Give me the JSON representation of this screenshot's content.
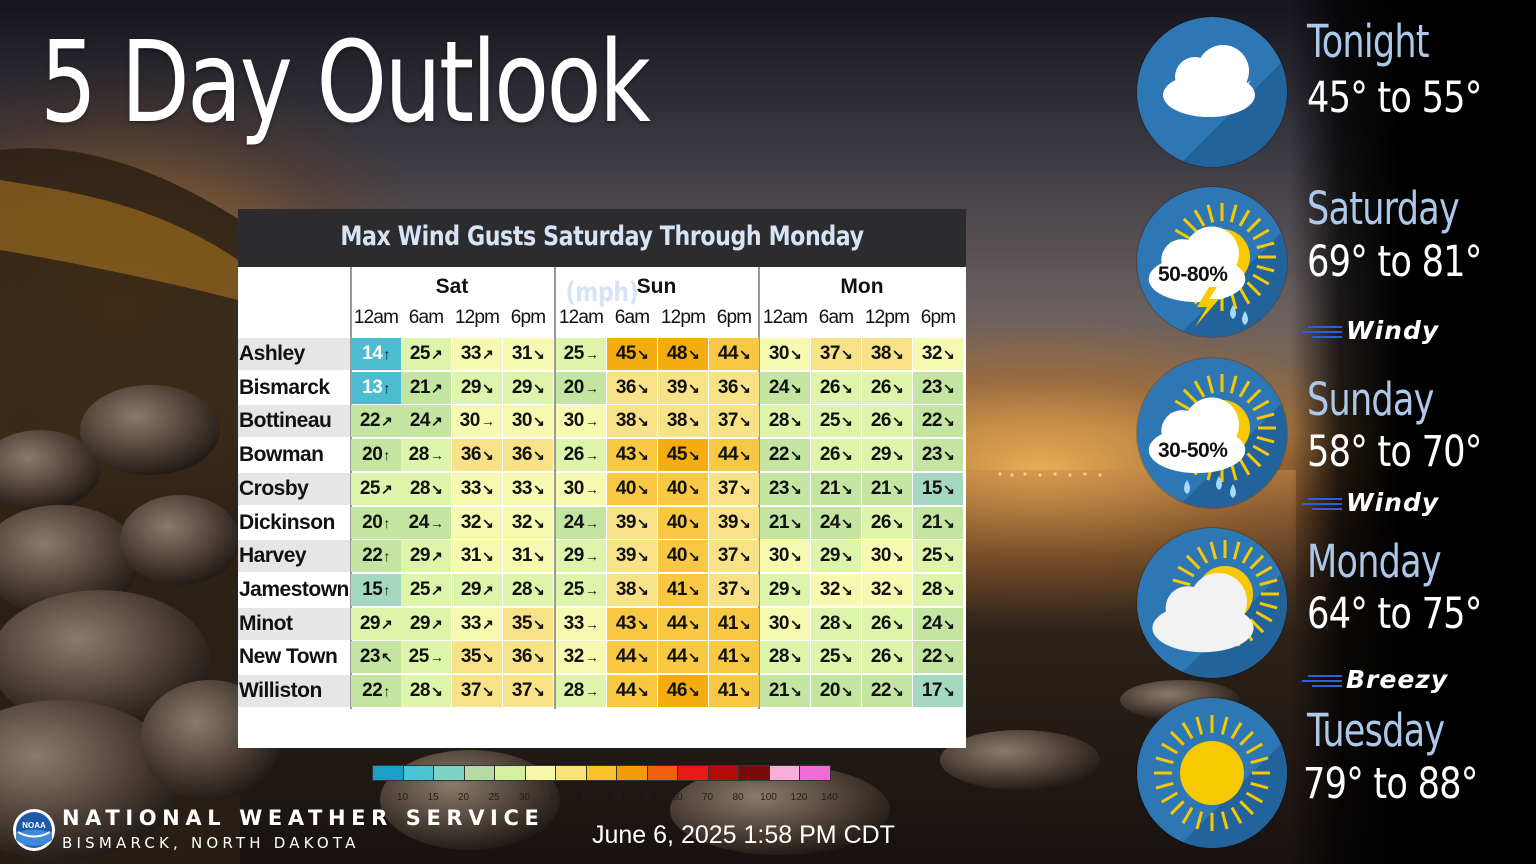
{
  "title": "5 Day Outlook",
  "wind_table": {
    "title": "Max Wind Gusts Saturday Through Monday (mph)",
    "days": [
      "Sat",
      "Sun",
      "Mon"
    ],
    "times": [
      "12am",
      "6am",
      "12pm",
      "6pm",
      "12am",
      "6am",
      "12pm",
      "6pm",
      "12am",
      "6am",
      "12pm",
      "6pm"
    ],
    "rows": [
      {
        "city": "Ashley",
        "values": [
          14,
          25,
          33,
          31,
          25,
          45,
          48,
          44,
          30,
          37,
          38,
          32
        ]
      },
      {
        "city": "Bismarck",
        "values": [
          13,
          21,
          29,
          29,
          20,
          36,
          39,
          36,
          24,
          26,
          26,
          23
        ]
      },
      {
        "city": "Bottineau",
        "values": [
          22,
          24,
          30,
          30,
          30,
          38,
          38,
          37,
          28,
          25,
          26,
          22
        ]
      },
      {
        "city": "Bowman",
        "values": [
          20,
          28,
          36,
          36,
          26,
          43,
          45,
          44,
          22,
          26,
          29,
          23
        ]
      },
      {
        "city": "Crosby",
        "values": [
          25,
          28,
          33,
          33,
          30,
          40,
          40,
          37,
          23,
          21,
          21,
          15
        ]
      },
      {
        "city": "Dickinson",
        "values": [
          20,
          24,
          32,
          32,
          24,
          39,
          40,
          39,
          21,
          24,
          26,
          21
        ]
      },
      {
        "city": "Harvey",
        "values": [
          22,
          29,
          31,
          31,
          29,
          39,
          40,
          37,
          30,
          29,
          30,
          25
        ]
      },
      {
        "city": "Jamestown",
        "values": [
          15,
          25,
          29,
          28,
          25,
          38,
          41,
          37,
          29,
          32,
          32,
          28
        ]
      },
      {
        "city": "Minot",
        "values": [
          29,
          29,
          33,
          35,
          33,
          43,
          44,
          41,
          30,
          28,
          26,
          24
        ]
      },
      {
        "city": "New Town",
        "values": [
          23,
          25,
          35,
          36,
          32,
          44,
          44,
          41,
          28,
          25,
          26,
          22
        ]
      },
      {
        "city": "Williston",
        "values": [
          22,
          28,
          37,
          37,
          28,
          44,
          46,
          41,
          21,
          20,
          22,
          17
        ]
      }
    ],
    "arrows": [
      [
        "↑",
        "↗",
        "↗",
        "↘",
        "→",
        "↘",
        "↘",
        "↘",
        "↘",
        "↘",
        "↘",
        "↘"
      ],
      [
        "↑",
        "↗",
        "↘",
        "↘",
        "→",
        "↘",
        "↘",
        "↘",
        "↘",
        "↘",
        "↘",
        "↘"
      ],
      [
        "↗",
        "↗",
        "→",
        "↘",
        "→",
        "↘",
        "↘",
        "↘",
        "↘",
        "↘",
        "↘",
        "↘"
      ],
      [
        "↑",
        "→",
        "↘",
        "↘",
        "→",
        "↘",
        "↘",
        "↘",
        "↘",
        "↘",
        "↘",
        "↘"
      ],
      [
        "↗",
        "↘",
        "↘",
        "↘",
        "→",
        "↘",
        "↘",
        "↘",
        "↘",
        "↘",
        "↘",
        "↘"
      ],
      [
        "↑",
        "→",
        "↘",
        "↘",
        "→",
        "↘",
        "↘",
        "↘",
        "↘",
        "↘",
        "↘",
        "↘"
      ],
      [
        "↑",
        "↗",
        "↘",
        "↘",
        "→",
        "↘",
        "↘",
        "↘",
        "↘",
        "↘",
        "↘",
        "↘"
      ],
      [
        "↑",
        "↗",
        "↗",
        "↘",
        "→",
        "↘",
        "↘",
        "↘",
        "↘",
        "↘",
        "↘",
        "↘"
      ],
      [
        "↗",
        "↗",
        "↗",
        "↘",
        "→",
        "↘",
        "↘",
        "↘",
        "↘",
        "↘",
        "↘",
        "↘"
      ],
      [
        "↖",
        "→",
        "↘",
        "↘",
        "→",
        "↘",
        "↘",
        "↘",
        "↘",
        "↘",
        "↘",
        "↘"
      ],
      [
        "↑",
        "↘",
        "↘",
        "↘",
        "→",
        "↘",
        "↘",
        "↘",
        "↘",
        "↘",
        "↘",
        "↘"
      ]
    ],
    "legend_ticks": [
      "10",
      "15",
      "20",
      "25",
      "30",
      "35",
      "40",
      "45",
      "50",
      "60",
      "70",
      "80",
      "100",
      "120",
      "140"
    ],
    "legend_colors": [
      "#1aa0c8",
      "#4cc2d4",
      "#7fd3c4",
      "#b2dca2",
      "#d2f0a0",
      "#f4f8a8",
      "#fae27a",
      "#f8c22a",
      "#f49a0c",
      "#f06010",
      "#e81a14",
      "#b40a0a",
      "#7a0a0a",
      "#f8aed8",
      "#f06ad8"
    ]
  },
  "forecast": [
    {
      "day": "Tonight",
      "temp": "45° to 55°",
      "icon": "partly-cloudy-night-icon",
      "pct": "",
      "tag": ""
    },
    {
      "day": "Saturday",
      "temp": "69° to 81°",
      "icon": "thunderstorm-sun-icon",
      "pct": "50-80%",
      "tag": "Windy"
    },
    {
      "day": "Sunday",
      "temp": "58° to 70°",
      "icon": "sun-showers-icon",
      "pct": "30-50%",
      "tag": "Windy"
    },
    {
      "day": "Monday",
      "temp": "64° to 75°",
      "icon": "partly-sunny-icon",
      "pct": "",
      "tag": "Breezy"
    },
    {
      "day": "Tuesday",
      "temp": "79° to 88°",
      "icon": "sunny-icon",
      "pct": "",
      "tag": ""
    }
  ],
  "footer": {
    "agency": "NATIONAL WEATHER SERVICE",
    "office": "BISMARCK, NORTH DAKOTA",
    "logo_text": "NOAA",
    "timestamp": "June 6, 2025 1:58 PM CDT"
  },
  "colors": {
    "header_bg": "#2c2c2f",
    "header_text": "#d7e4f6",
    "day_text": "#aec8ea",
    "icon_bg": "#2d78b4"
  }
}
